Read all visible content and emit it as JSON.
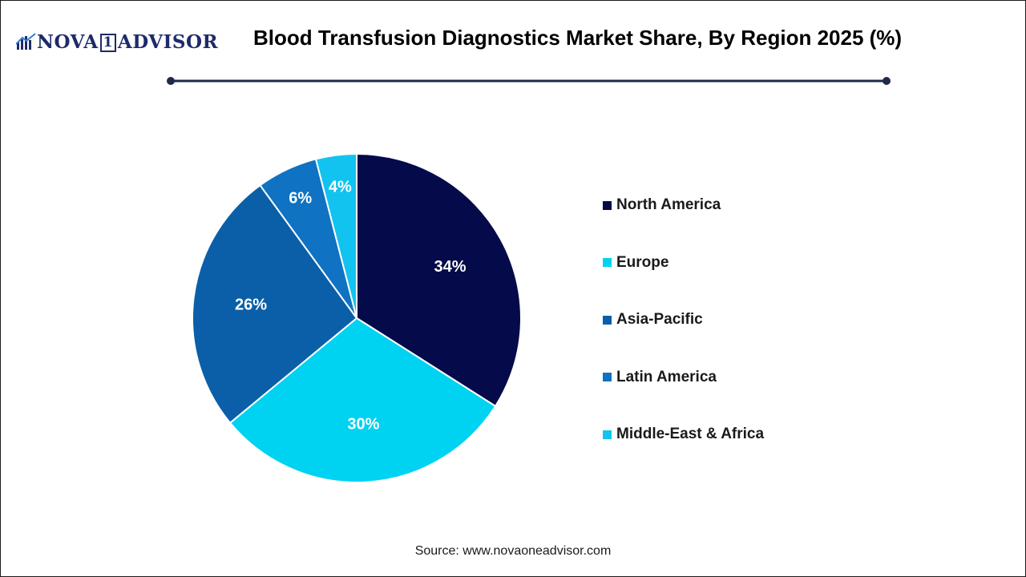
{
  "brand": {
    "logo_part1": "NOVA",
    "logo_part2": "1",
    "logo_part3": "ADVISOR",
    "color": "#1f2a6b"
  },
  "chart_data": {
    "type": "pie",
    "title": "Blood Transfusion Diagnostics Market Share, By Region 2025 (%)",
    "categories": [
      "North America",
      "Europe",
      "Asia-Pacific",
      "Latin America",
      "Middle-East & Africa"
    ],
    "values": [
      34,
      30,
      26,
      6,
      4
    ],
    "value_labels": [
      "34%",
      "30%",
      "26%",
      "6%",
      "4%"
    ],
    "colors": [
      "#050a4a",
      "#00d2f2",
      "#0a5fa8",
      "#0f72c2",
      "#12c3f0"
    ],
    "legend_position": "right",
    "start_direction": "top, clockwise"
  },
  "source": "Source: www.novaoneadvisor.com"
}
